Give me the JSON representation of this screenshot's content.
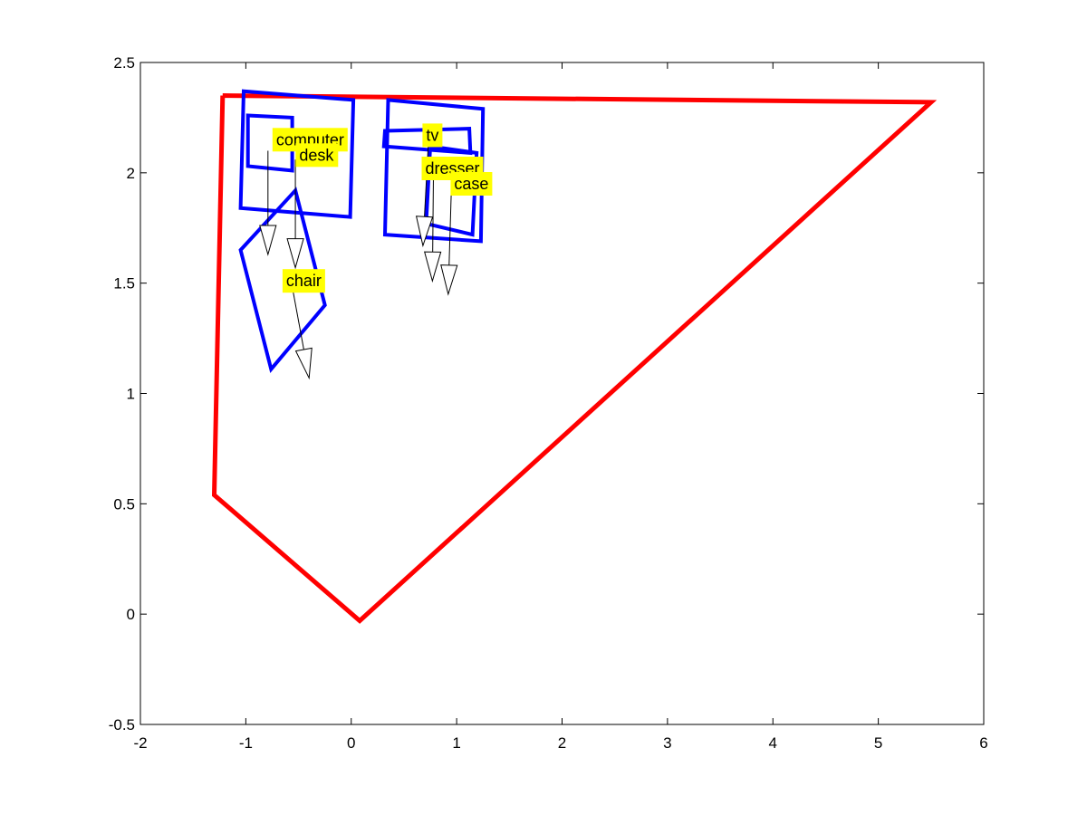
{
  "chart_data": {
    "type": "line",
    "title": "",
    "xlabel": "",
    "ylabel": "",
    "xlim": [
      -2,
      6
    ],
    "ylim": [
      -0.5,
      2.5
    ],
    "xticks": [
      -2,
      -1,
      0,
      1,
      2,
      3,
      4,
      5,
      6
    ],
    "yticks": [
      -0.5,
      0,
      0.5,
      1,
      1.5,
      2,
      2.5
    ],
    "xtick_labels": [
      "-2",
      "-1",
      "0",
      "1",
      "2",
      "3",
      "4",
      "5",
      "6"
    ],
    "ytick_labels": [
      "-0.5",
      "0",
      "0.5",
      "1",
      "1.5",
      "2",
      "2.5"
    ],
    "grid": false,
    "colors": {
      "room": "#ff0000",
      "objects": "#0000ff",
      "label_bg": "#ffff00",
      "arrow": "#000000"
    },
    "room_outline": {
      "points": [
        [
          -1.22,
          2.35
        ],
        [
          5.5,
          2.32
        ],
        [
          0.08,
          -0.03
        ],
        [
          -1.3,
          0.54
        ],
        [
          -1.22,
          2.35
        ]
      ]
    },
    "objects": [
      {
        "label": "computer",
        "polygon": [
          [
            -0.98,
            2.26
          ],
          [
            -0.56,
            2.25
          ],
          [
            -0.56,
            2.01
          ],
          [
            -0.98,
            2.03
          ]
        ],
        "label_pos": [
          -0.39,
          2.15
        ],
        "arrow": [
          [
            -0.79,
            2.1
          ],
          [
            -0.79,
            1.63
          ]
        ]
      },
      {
        "label": "desk",
        "polygon": [
          [
            -1.02,
            2.37
          ],
          [
            0.02,
            2.33
          ],
          [
            -0.01,
            1.8
          ],
          [
            -1.05,
            1.84
          ]
        ],
        "label_pos": [
          -0.33,
          2.08
        ],
        "arrow": [
          [
            -0.53,
            2.06
          ],
          [
            -0.53,
            1.57
          ]
        ]
      },
      {
        "label": "chair",
        "polygon": [
          [
            -0.53,
            1.92
          ],
          [
            -0.25,
            1.4
          ],
          [
            -0.76,
            1.11
          ],
          [
            -1.05,
            1.65
          ]
        ],
        "label_pos": [
          -0.45,
          1.51
        ],
        "arrow": [
          [
            -0.57,
            1.51
          ],
          [
            -0.4,
            1.07
          ]
        ]
      },
      {
        "label": "tv",
        "polygon": [
          [
            0.32,
            2.19
          ],
          [
            1.12,
            2.2
          ],
          [
            1.13,
            2.09
          ],
          [
            0.31,
            2.12
          ]
        ],
        "label_pos": [
          0.77,
          2.17
        ],
        "arrow": [
          [
            0.73,
            2.12
          ],
          [
            0.68,
            1.67
          ]
        ]
      },
      {
        "label": "dresser",
        "polygon": [
          [
            0.35,
            2.33
          ],
          [
            1.25,
            2.29
          ],
          [
            1.23,
            1.69
          ],
          [
            0.32,
            1.72
          ]
        ],
        "label_pos": [
          0.96,
          2.02
        ],
        "arrow": [
          [
            0.78,
            2.0
          ],
          [
            0.77,
            1.51
          ]
        ]
      },
      {
        "label": "case",
        "polygon": [
          [
            0.75,
            2.12
          ],
          [
            1.19,
            2.09
          ],
          [
            1.15,
            1.72
          ],
          [
            0.71,
            1.77
          ]
        ],
        "label_pos": [
          1.14,
          1.95
        ],
        "arrow": [
          [
            0.95,
            1.93
          ],
          [
            0.92,
            1.45
          ]
        ]
      }
    ]
  }
}
